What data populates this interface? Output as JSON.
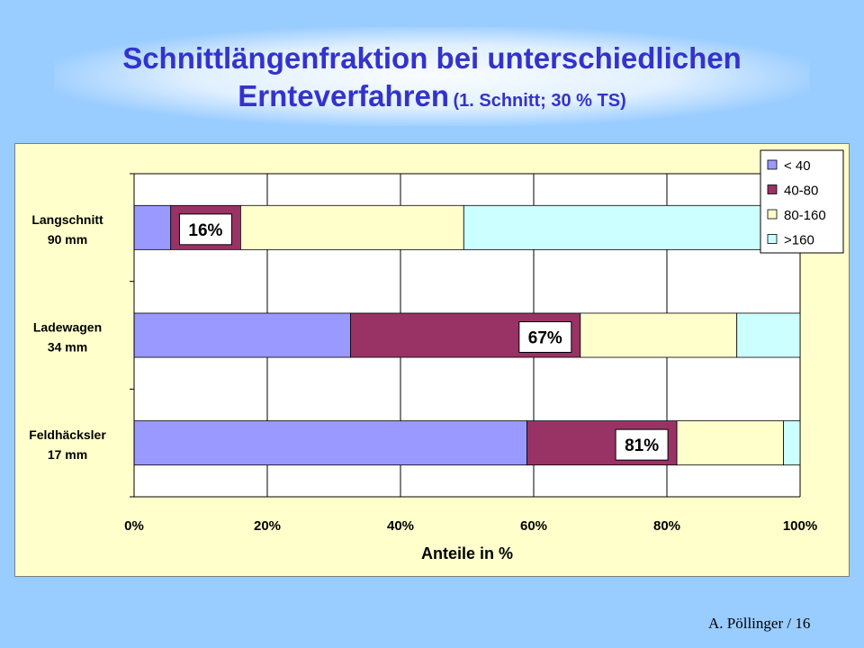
{
  "title": {
    "line1": "Schnittlängenfraktion bei unterschiedlichen",
    "line2_main": "Ernteverfahren",
    "line2_sub": "(1. Schnitt; 30 % TS)"
  },
  "footer": "A. Pöllinger / 16",
  "chart_data": {
    "type": "bar",
    "orientation": "horizontal",
    "stacked": "percent",
    "categories": [
      {
        "line1": "Langschnitt",
        "line2": "90 mm"
      },
      {
        "line1": "Ladewagen",
        "line2": "34 mm"
      },
      {
        "line1": "Feldhäcksler",
        "line2": "17 mm"
      }
    ],
    "series": [
      {
        "name": "< 40",
        "color": "#9999ff",
        "values": [
          5.5,
          32.5,
          59
        ]
      },
      {
        "name": "40-80",
        "color": "#993366",
        "values": [
          10.5,
          34.5,
          22.5
        ]
      },
      {
        "name": "80-160",
        "color": "#ffffcc",
        "values": [
          33.5,
          23.5,
          16
        ]
      },
      {
        "name": ">160",
        "color": "#ccffff",
        "values": [
          50.5,
          9.5,
          2.5
        ]
      }
    ],
    "annotations": [
      "16%",
      "67%",
      "81%"
    ],
    "xlabel": "Anteile in %",
    "xticks": [
      "0%",
      "20%",
      "40%",
      "60%",
      "80%",
      "100%"
    ],
    "xlim": [
      0,
      100
    ],
    "grid": true,
    "legend_position": "top-right"
  }
}
